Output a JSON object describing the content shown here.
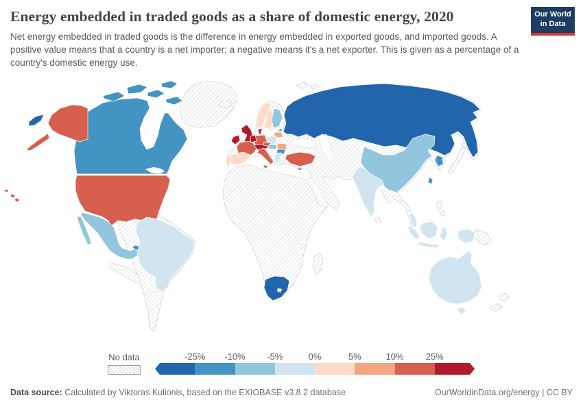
{
  "header": {
    "title": "Energy embedded in traded goods as a share of domestic energy, 2020",
    "subtitle": "Net energy embedded in traded goods is the difference in energy embedded in exported goods, and imported goods. A positive value means that a country is a net importer; a negative means it's a net exporter. This is given as a percentage of a country's domestic energy use.",
    "logo": {
      "line1": "Our World",
      "line2": "in Data",
      "bg": "#1d3d63",
      "stripe": "#d73a34"
    }
  },
  "legend": {
    "no_data_label": "No data",
    "tick_labels": [
      "-25%",
      "-10%",
      "-5%",
      "0%",
      "5%",
      "10%",
      "25%"
    ],
    "bucket_colors": [
      "#2166ac",
      "#4393c3",
      "#92c5de",
      "#d1e5f0",
      "#fddbc7",
      "#f4a582",
      "#d6604d",
      "#b2182b"
    ]
  },
  "footer": {
    "source_label": "Data source:",
    "source_text": " Calculated by Viktoras Kulionis, based on the EXIOBASE v3.8.2 database",
    "right_text": "OurWorldinData.org/energy | CC BY"
  },
  "chart_data": {
    "type": "heatmap",
    "subtype": "choropleth-world-map",
    "title": "Energy embedded in traded goods as a share of domestic energy, 2020",
    "unit": "% of a country's domestic energy use",
    "legend_position": "bottom",
    "color_scale": {
      "kind": "diverging",
      "breaks_percent": [
        -25,
        -10,
        -5,
        0,
        5,
        10,
        25
      ],
      "colors": [
        "#2166ac",
        "#4393c3",
        "#92c5de",
        "#d1e5f0",
        "#fddbc7",
        "#f4a582",
        "#d6604d",
        "#b2182b"
      ],
      "no_data": "hatched"
    },
    "values": {
      "Russia": "< -25%",
      "South Africa": "< -25%",
      "Canada": "-25% to -10%",
      "Cuba": "-25% to -10%",
      "South Korea": "-25% to -10%",
      "Taiwan": "-25% to -10%",
      "Bulgaria": "-25% to -10%",
      "Estonia": "-25% to -10%",
      "Cyprus": "-25% to -10%",
      "Mexico": "-10% to -5%",
      "China": "-10% to -5%",
      "Finland": "-10% to -5%",
      "Hungary": "-10% to -5%",
      "Slovakia": "-10% to -5%",
      "Brazil": "-5% to 0%",
      "India": "-5% to 0%",
      "Indonesia": "-5% to 0%",
      "Australia": "-5% to 0%",
      "Poland": "-5% to 0%",
      "Greece": "-5% to 0%",
      "Norway": "0% to 5%",
      "Sweden": "0% to 5%",
      "Spain": "0% to 5%",
      "Portugal": "0% to 5%",
      "Latvia": "5% to 10%",
      "Lithuania": "5% to 10%",
      "Romania": "5% to 10%",
      "United States": "10% to 25%",
      "France": "10% to 25%",
      "Germany": "10% to 25%",
      "Italy": "10% to 25%",
      "Czechia": "10% to 25%",
      "Turkey": "10% to 25%",
      "United Kingdom": "> 25%",
      "Ireland": "> 25%",
      "Belgium": "> 25%",
      "Netherlands": "> 25%",
      "Switzerland": "> 25%",
      "Austria": "> 25%",
      "Denmark": "> 25%",
      "Greenland": "No data",
      "Rest of Latin America": "No data",
      "Africa (except South Africa)": "No data",
      "Middle East": "No data",
      "Ukraine & Belarus": "No data",
      "Balkans": "No data",
      "Kazakhstan & Central Asia": "No data",
      "Mongolia": "No data",
      "Japan": "No data",
      "Mainland Southeast Asia": "No data",
      "Philippines": "No data",
      "Papua New Guinea": "No data",
      "New Zealand": "No data",
      "Iceland": "No data",
      "Madagascar": "No data"
    }
  },
  "map": {
    "ocean": "#ffffff",
    "no_data_fill": "hatch",
    "countries": {
      "greenland": "hatch",
      "iceland": "hatch",
      "svalbard": "hatch",
      "eurasia-nodata": "hatch",
      "africa-nodata": "hatch",
      "madagascar": "hatch",
      "central-america-nodata": "hatch",
      "south-america-nodata": "hatch",
      "japan": "hatch",
      "philippines": "hatch",
      "papua-new-guinea": "hatch",
      "new-zealand": "hatch",
      "sri-lanka": "hatch",
      "canada": "#4393c3",
      "united-states": "#d6604d",
      "russia": "#2166ac",
      "mexico": "#92c5de",
      "cuba": "#4393c3",
      "brazil": "#d1e5f0",
      "south-africa": "#2166ac",
      "united-kingdom": "#b2182b",
      "ireland": "#b2182b",
      "norway": "#fddbc7",
      "sweden": "#fddbc7",
      "finland": "#92c5de",
      "denmark": "#b2182b",
      "estonia": "#4393c3",
      "latvia-lithuania": "#f4a582",
      "poland": "#d1e5f0",
      "germany": "#d6604d",
      "benelux": "#b2182b",
      "france": "#d6604d",
      "spain": "#fddbc7",
      "portugal": "#fddbc7",
      "switzerland-austria": "#b2182b",
      "czechia": "#d6604d",
      "italy": "#d6604d",
      "hungary-slovakia": "#92c5de",
      "romania": "#f4a582",
      "bulgaria": "#4393c3",
      "greece": "#d1e5f0",
      "turkey": "#d6604d",
      "cyprus": "#4393c3",
      "china": "#92c5de",
      "south-korea": "#4393c3",
      "taiwan": "#4393c3",
      "india": "#d1e5f0",
      "indonesia": "#d1e5f0",
      "australia": "#d1e5f0"
    }
  }
}
